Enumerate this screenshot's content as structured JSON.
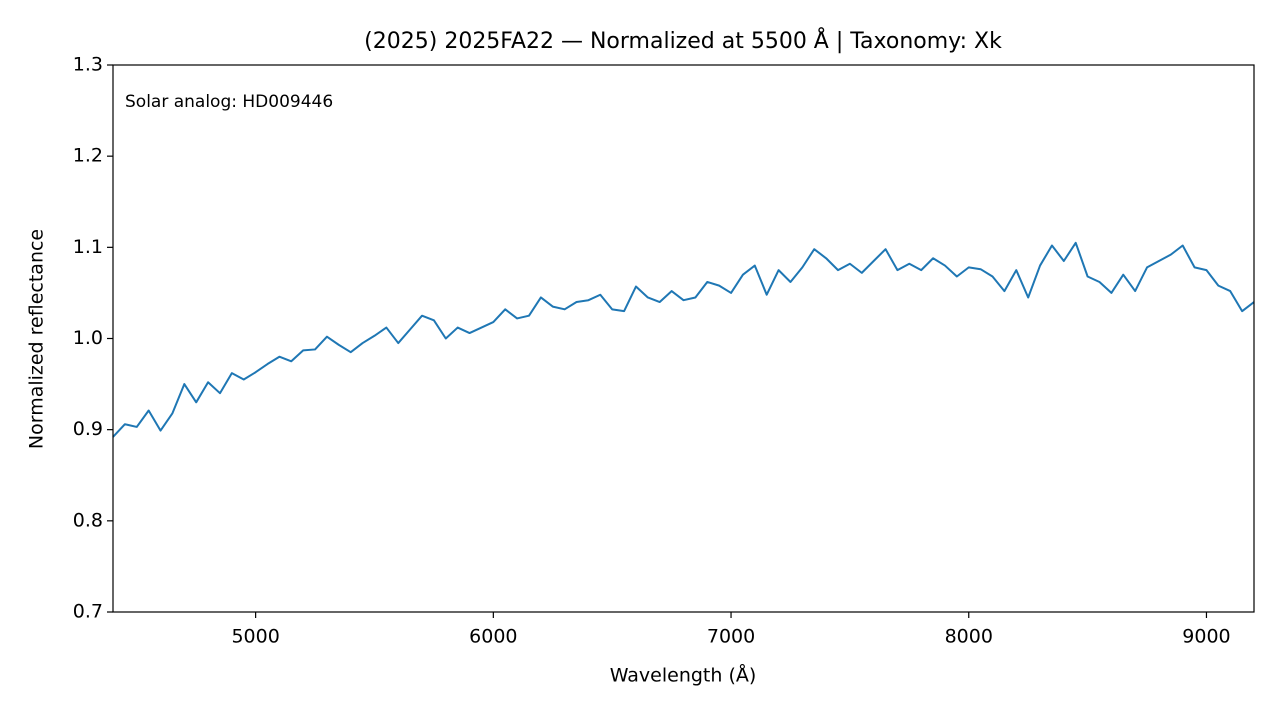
{
  "chart_data": {
    "type": "line",
    "title": "(2025) 2025FA22 — Normalized at 5500 Å | Taxonomy: Xk",
    "xlabel": "Wavelength (Å)",
    "ylabel": "Normalized reflectance",
    "annotation": "Solar analog: HD009446",
    "x": [
      4400,
      4450,
      4500,
      4550,
      4600,
      4650,
      4700,
      4750,
      4800,
      4850,
      4900,
      4950,
      5000,
      5050,
      5100,
      5150,
      5200,
      5250,
      5300,
      5350,
      5400,
      5450,
      5500,
      5550,
      5600,
      5650,
      5700,
      5750,
      5800,
      5850,
      5900,
      5950,
      6000,
      6050,
      6100,
      6150,
      6200,
      6250,
      6300,
      6350,
      6400,
      6450,
      6500,
      6550,
      6600,
      6650,
      6700,
      6750,
      6800,
      6850,
      6900,
      6950,
      7000,
      7050,
      7100,
      7150,
      7200,
      7250,
      7300,
      7350,
      7400,
      7450,
      7500,
      7550,
      7600,
      7650,
      7700,
      7750,
      7800,
      7850,
      7900,
      7950,
      8000,
      8050,
      8100,
      8150,
      8200,
      8250,
      8300,
      8350,
      8400,
      8450,
      8500,
      8550,
      8600,
      8650,
      8700,
      8750,
      8800,
      8850,
      8900,
      8950,
      9000,
      9050,
      9100,
      9150,
      9200
    ],
    "series": [
      {
        "color": "#1f77b4",
        "values": [
          0.892,
          0.906,
          0.903,
          0.921,
          0.899,
          0.918,
          0.95,
          0.93,
          0.952,
          0.94,
          0.962,
          0.955,
          0.963,
          0.972,
          0.98,
          0.975,
          0.987,
          0.988,
          1.002,
          0.993,
          0.985,
          0.995,
          1.003,
          1.012,
          0.995,
          1.01,
          1.025,
          1.02,
          1.0,
          1.012,
          1.006,
          1.012,
          1.018,
          1.032,
          1.022,
          1.025,
          1.045,
          1.035,
          1.032,
          1.04,
          1.042,
          1.048,
          1.032,
          1.03,
          1.057,
          1.045,
          1.04,
          1.052,
          1.042,
          1.045,
          1.062,
          1.058,
          1.05,
          1.07,
          1.08,
          1.048,
          1.075,
          1.062,
          1.078,
          1.098,
          1.088,
          1.075,
          1.082,
          1.072,
          1.085,
          1.098,
          1.075,
          1.082,
          1.075,
          1.088,
          1.08,
          1.068,
          1.078,
          1.076,
          1.068,
          1.052,
          1.075,
          1.045,
          1.08,
          1.102,
          1.085,
          1.105,
          1.068,
          1.062,
          1.05,
          1.07,
          1.052,
          1.078,
          1.085,
          1.092,
          1.102,
          1.078,
          1.075,
          1.058,
          1.052,
          1.03,
          1.04
        ]
      }
    ],
    "xlim": [
      4400,
      9200
    ],
    "xticks": [
      5000,
      6000,
      7000,
      8000,
      9000
    ],
    "ylim": [
      0.7,
      1.3
    ],
    "yticks": [
      0.7,
      0.8,
      0.9,
      {
        "value": 1,
        "label": "1.0"
      },
      1.1,
      1.2,
      1.3
    ],
    "grid": false
  }
}
